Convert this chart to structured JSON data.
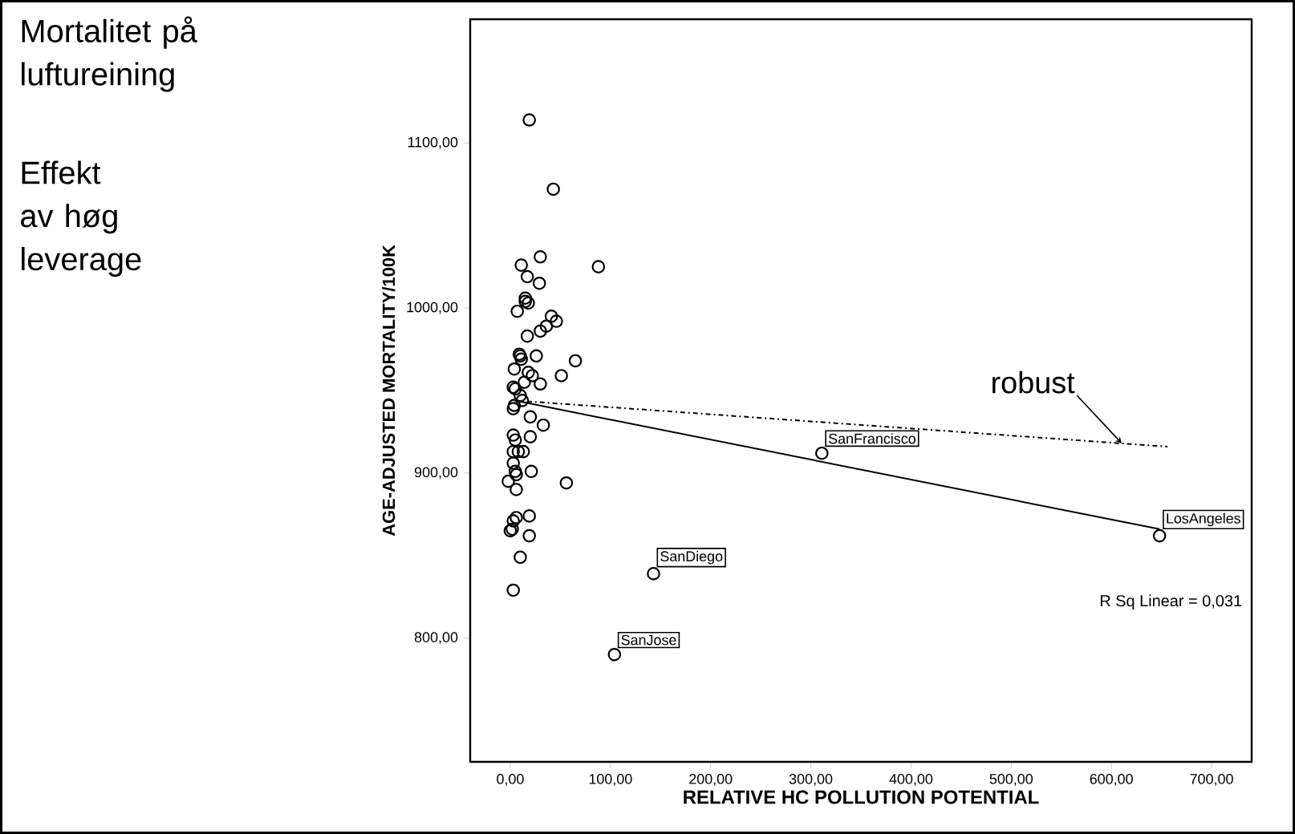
{
  "chart_data": {
    "type": "scatter",
    "title": "Mortalitet på luftureining",
    "subtitle": "Effekt av høg leverage",
    "xlabel": "RELATIVE HC POLLUTION POTENTIAL",
    "ylabel": "AGE-ADJUSTED MORTALITY/100K",
    "xlim": [
      -40,
      740
    ],
    "ylim": [
      725,
      1175
    ],
    "xticks": [
      {
        "value": 0,
        "label": "0,00"
      },
      {
        "value": 100,
        "label": "100,00"
      },
      {
        "value": 200,
        "label": "200,00"
      },
      {
        "value": 300,
        "label": "300,00"
      },
      {
        "value": 400,
        "label": "400,00"
      },
      {
        "value": 500,
        "label": "500,00"
      },
      {
        "value": 600,
        "label": "600,00"
      },
      {
        "value": 700,
        "label": "700,00"
      }
    ],
    "yticks": [
      {
        "value": 800,
        "label": "800,00"
      },
      {
        "value": 900,
        "label": "900,00"
      },
      {
        "value": 1000,
        "label": "1000,00"
      },
      {
        "value": 1100,
        "label": "1100,00"
      }
    ],
    "marker": "circle",
    "series": [
      {
        "color": "#000000",
        "x": [
          19,
          43,
          30,
          11,
          88,
          17,
          29,
          15,
          15,
          18,
          7,
          41,
          46,
          36,
          30,
          17,
          9,
          10,
          26,
          11,
          65,
          4,
          18,
          51,
          22,
          14,
          30,
          3,
          5,
          10,
          12,
          4,
          3,
          20,
          33,
          3,
          20,
          5,
          3,
          8,
          13,
          3,
          5,
          21,
          6,
          -2,
          56,
          6,
          6,
          3,
          19,
          0,
          2,
          19,
          10,
          3,
          104,
          143,
          311,
          648
        ],
        "values": [
          1114,
          1072,
          1031,
          1026,
          1025,
          1019,
          1015,
          1006,
          1004,
          1003,
          998,
          995,
          992,
          989,
          986,
          983,
          972,
          971,
          971,
          969,
          968,
          963,
          961,
          959,
          959,
          955,
          954,
          952,
          951,
          947,
          944,
          941,
          939,
          934,
          929,
          923,
          922,
          920,
          913,
          913,
          913,
          906,
          901,
          901,
          899,
          895,
          894,
          890,
          873,
          871,
          874,
          865,
          866,
          862,
          849,
          829,
          790,
          839,
          912,
          862
        ]
      },
      {
        "type": "line",
        "color": "#000000",
        "marker": "none",
        "line_style": "solid",
        "x": [
          4,
          648
        ],
        "values": [
          944,
          866
        ]
      },
      {
        "type": "line",
        "color": "#000000",
        "marker": "none",
        "line_style": "dashed",
        "name": "robust",
        "x": [
          4,
          656
        ],
        "values": [
          944,
          916
        ]
      }
    ],
    "annotations": [
      {
        "text": "SanFrancisco",
        "x": 311,
        "y": 912
      },
      {
        "text": "LosAngeles",
        "x": 648,
        "y": 862
      },
      {
        "text": "SanDiego",
        "x": 143,
        "y": 839
      },
      {
        "text": "SanJose",
        "x": 104,
        "y": 790
      },
      "R Sq Linear = 0,031"
    ]
  }
}
